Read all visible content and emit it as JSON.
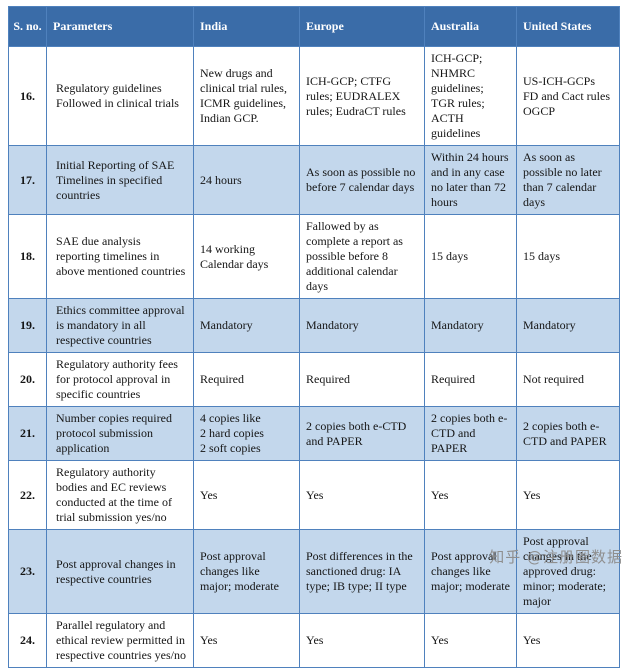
{
  "colors": {
    "header_bg": "#3a6ca8",
    "row_alt_bg": "#c3d7ec",
    "row_bg": "#ffffff",
    "border": "#4f81bd",
    "header_text": "#ffffff",
    "body_text": "#151515"
  },
  "table": {
    "headers": [
      "S. no.",
      "Parameters",
      "India",
      "Europe",
      "Australia",
      "United States"
    ],
    "rows": [
      {
        "no": "16.",
        "parameters": "Regulatory guidelines Followed in clinical trials",
        "india": "New drugs and clinical trial rules, ICMR guidelines, Indian GCP.",
        "europe": "ICH-GCP; CTFG rules; EUDRALEX rules; EudraCT rules",
        "australia": "ICH-GCP; NHMRC guidelines; TGR rules; ACTH guidelines",
        "us": "US-ICH-GCPs FD and Cact rules OGCP"
      },
      {
        "no": "17.",
        "parameters": "Initial Reporting of SAE Timelines in specified countries",
        "india": "24 hours",
        "europe": "As soon as possible no before 7 calendar days",
        "australia": "Within 24 hours and in any case no later than 72 hours",
        "us": "As soon as possible no later than 7 calendar days"
      },
      {
        "no": "18.",
        "parameters": "SAE due analysis reporting timelines in above mentioned countries",
        "india": "14 working Calendar days",
        "europe": "Fallowed by as complete a report as possible before 8 additional calendar days",
        "australia": "15 days",
        "us": "15  days"
      },
      {
        "no": "19.",
        "parameters": "Ethics committee approval is mandatory in all respective countries",
        "india": "Mandatory",
        "europe": "Mandatory",
        "australia": "Mandatory",
        "us": "Mandatory"
      },
      {
        "no": "20.",
        "parameters": "Regulatory authority fees for protocol approval in specific countries",
        "india": "Required",
        "europe": "Required",
        "australia": "Required",
        "us": "Not required"
      },
      {
        "no": "21.",
        "parameters": "Number copies required protocol submission application",
        "india": "4 copies like\n2 hard copies\n2 soft copies",
        "europe": "2 copies both e-CTD and PAPER",
        "australia": "2 copies both e-CTD and PAPER",
        "us": "2 copies both e-CTD and PAPER"
      },
      {
        "no": "22.",
        "parameters": "Regulatory authority bodies and EC reviews conducted at the time of trial submission yes/no",
        "india": "Yes",
        "europe": "Yes",
        "australia": "Yes",
        "us": "Yes"
      },
      {
        "no": "23.",
        "parameters": "Post approval changes in respective countries",
        "india": "Post approval changes like major; moderate",
        "europe": "Post differences in the sanctioned drug: IA type; IB type; II type",
        "australia": "Post approval changes like major; moderate",
        "us": "Post approval changes in the approved drug: minor; moderate; major"
      },
      {
        "no": "24.",
        "parameters": "Parallel regulatory and ethical review permitted in respective countries yes/no",
        "india": "Yes",
        "europe": "Yes",
        "australia": "Yes",
        "us": "Yes"
      }
    ]
  },
  "watermark": {
    "text": "知乎 @注册圈数据"
  }
}
